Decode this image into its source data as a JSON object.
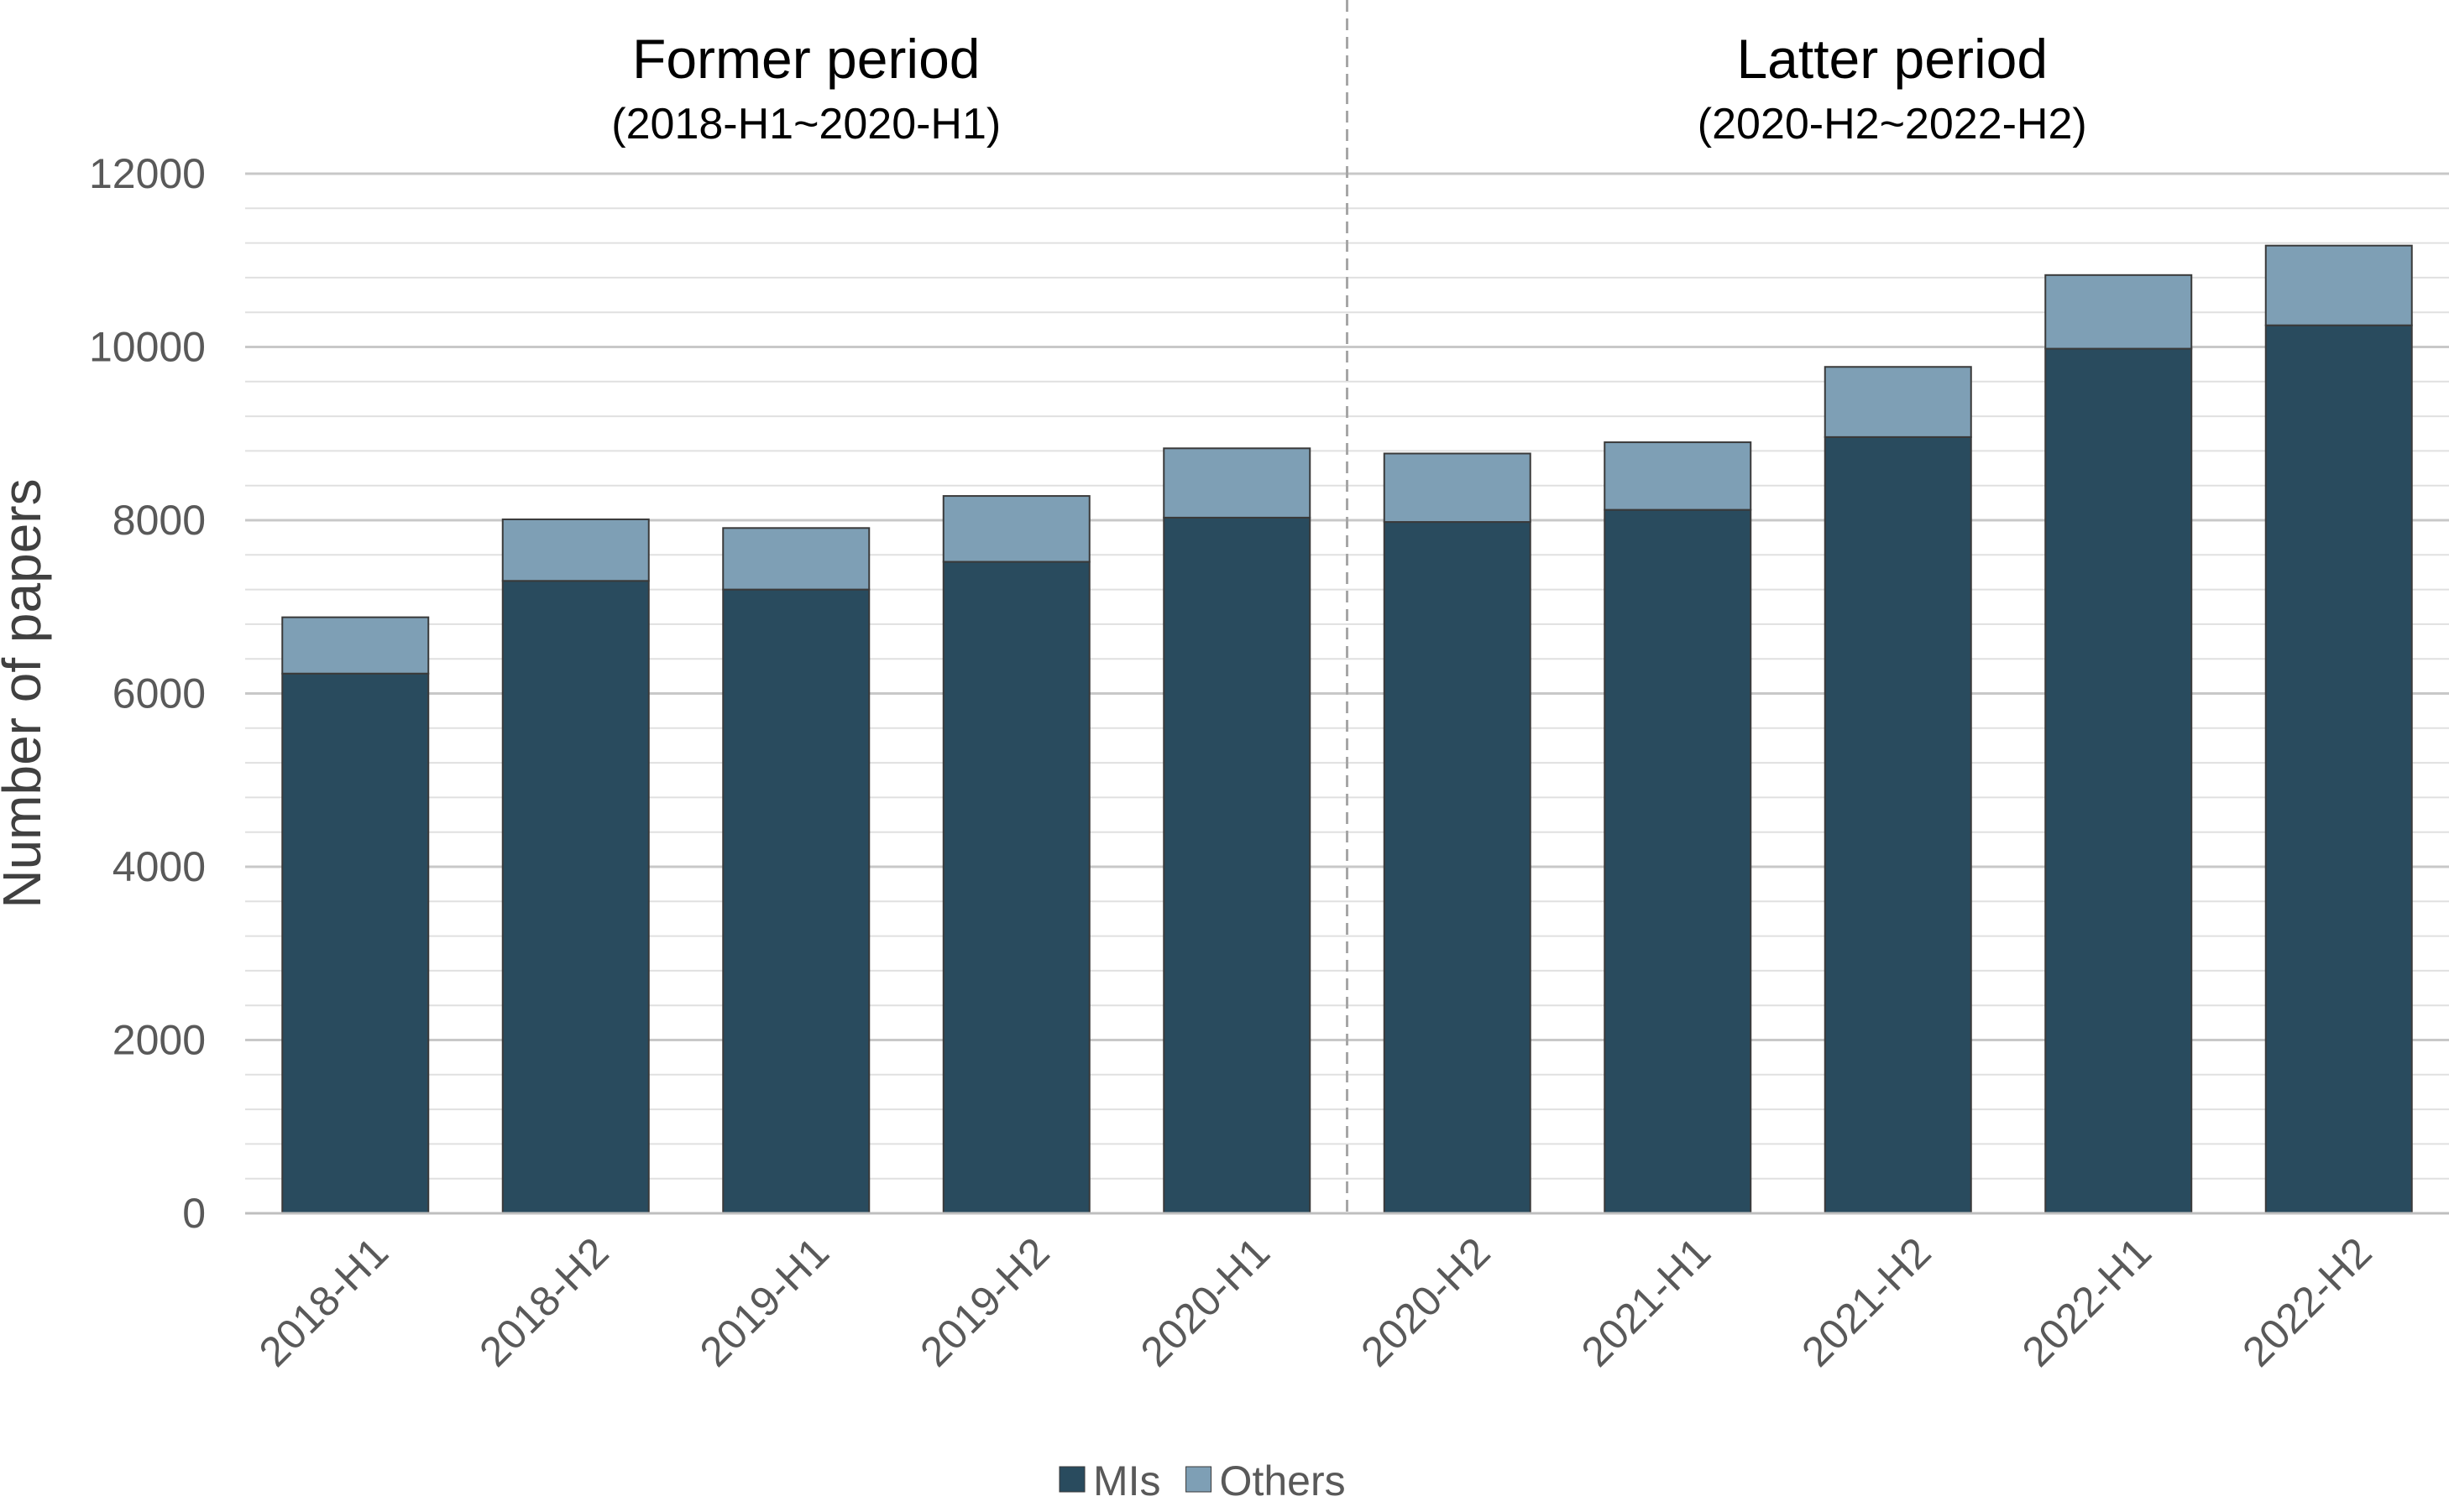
{
  "chart_data": {
    "type": "bar",
    "stacked": true,
    "categories": [
      "2018-H1",
      "2018-H2",
      "2019-H1",
      "2019-H2",
      "2020-H1",
      "2020-H2",
      "2021-H1",
      "2021-H2",
      "2022-H1",
      "2022-H2"
    ],
    "series": [
      {
        "name": "MIs",
        "color": "#294B5E",
        "values": [
          6230,
          7300,
          7200,
          7520,
          8030,
          7980,
          8120,
          8960,
          9980,
          10250
        ]
      },
      {
        "name": "Others",
        "color": "#7E9FB5",
        "values": [
          650,
          710,
          710,
          760,
          800,
          790,
          780,
          810,
          850,
          920
        ]
      }
    ],
    "xlabel": "",
    "ylabel": "Number of papers",
    "ylim": [
      0,
      12000
    ],
    "yticks": [
      "0",
      "2000",
      "4000",
      "6000",
      "8000",
      "10000",
      "12000"
    ],
    "grid": true,
    "legend_position": "bottom",
    "periods": [
      {
        "title": "Former period",
        "subtitle": "(2018-H1~2020-H1)"
      },
      {
        "title": "Latter period",
        "subtitle": "(2020-H2~2022-H2)"
      }
    ],
    "divider_after_category": "2020-H1"
  }
}
